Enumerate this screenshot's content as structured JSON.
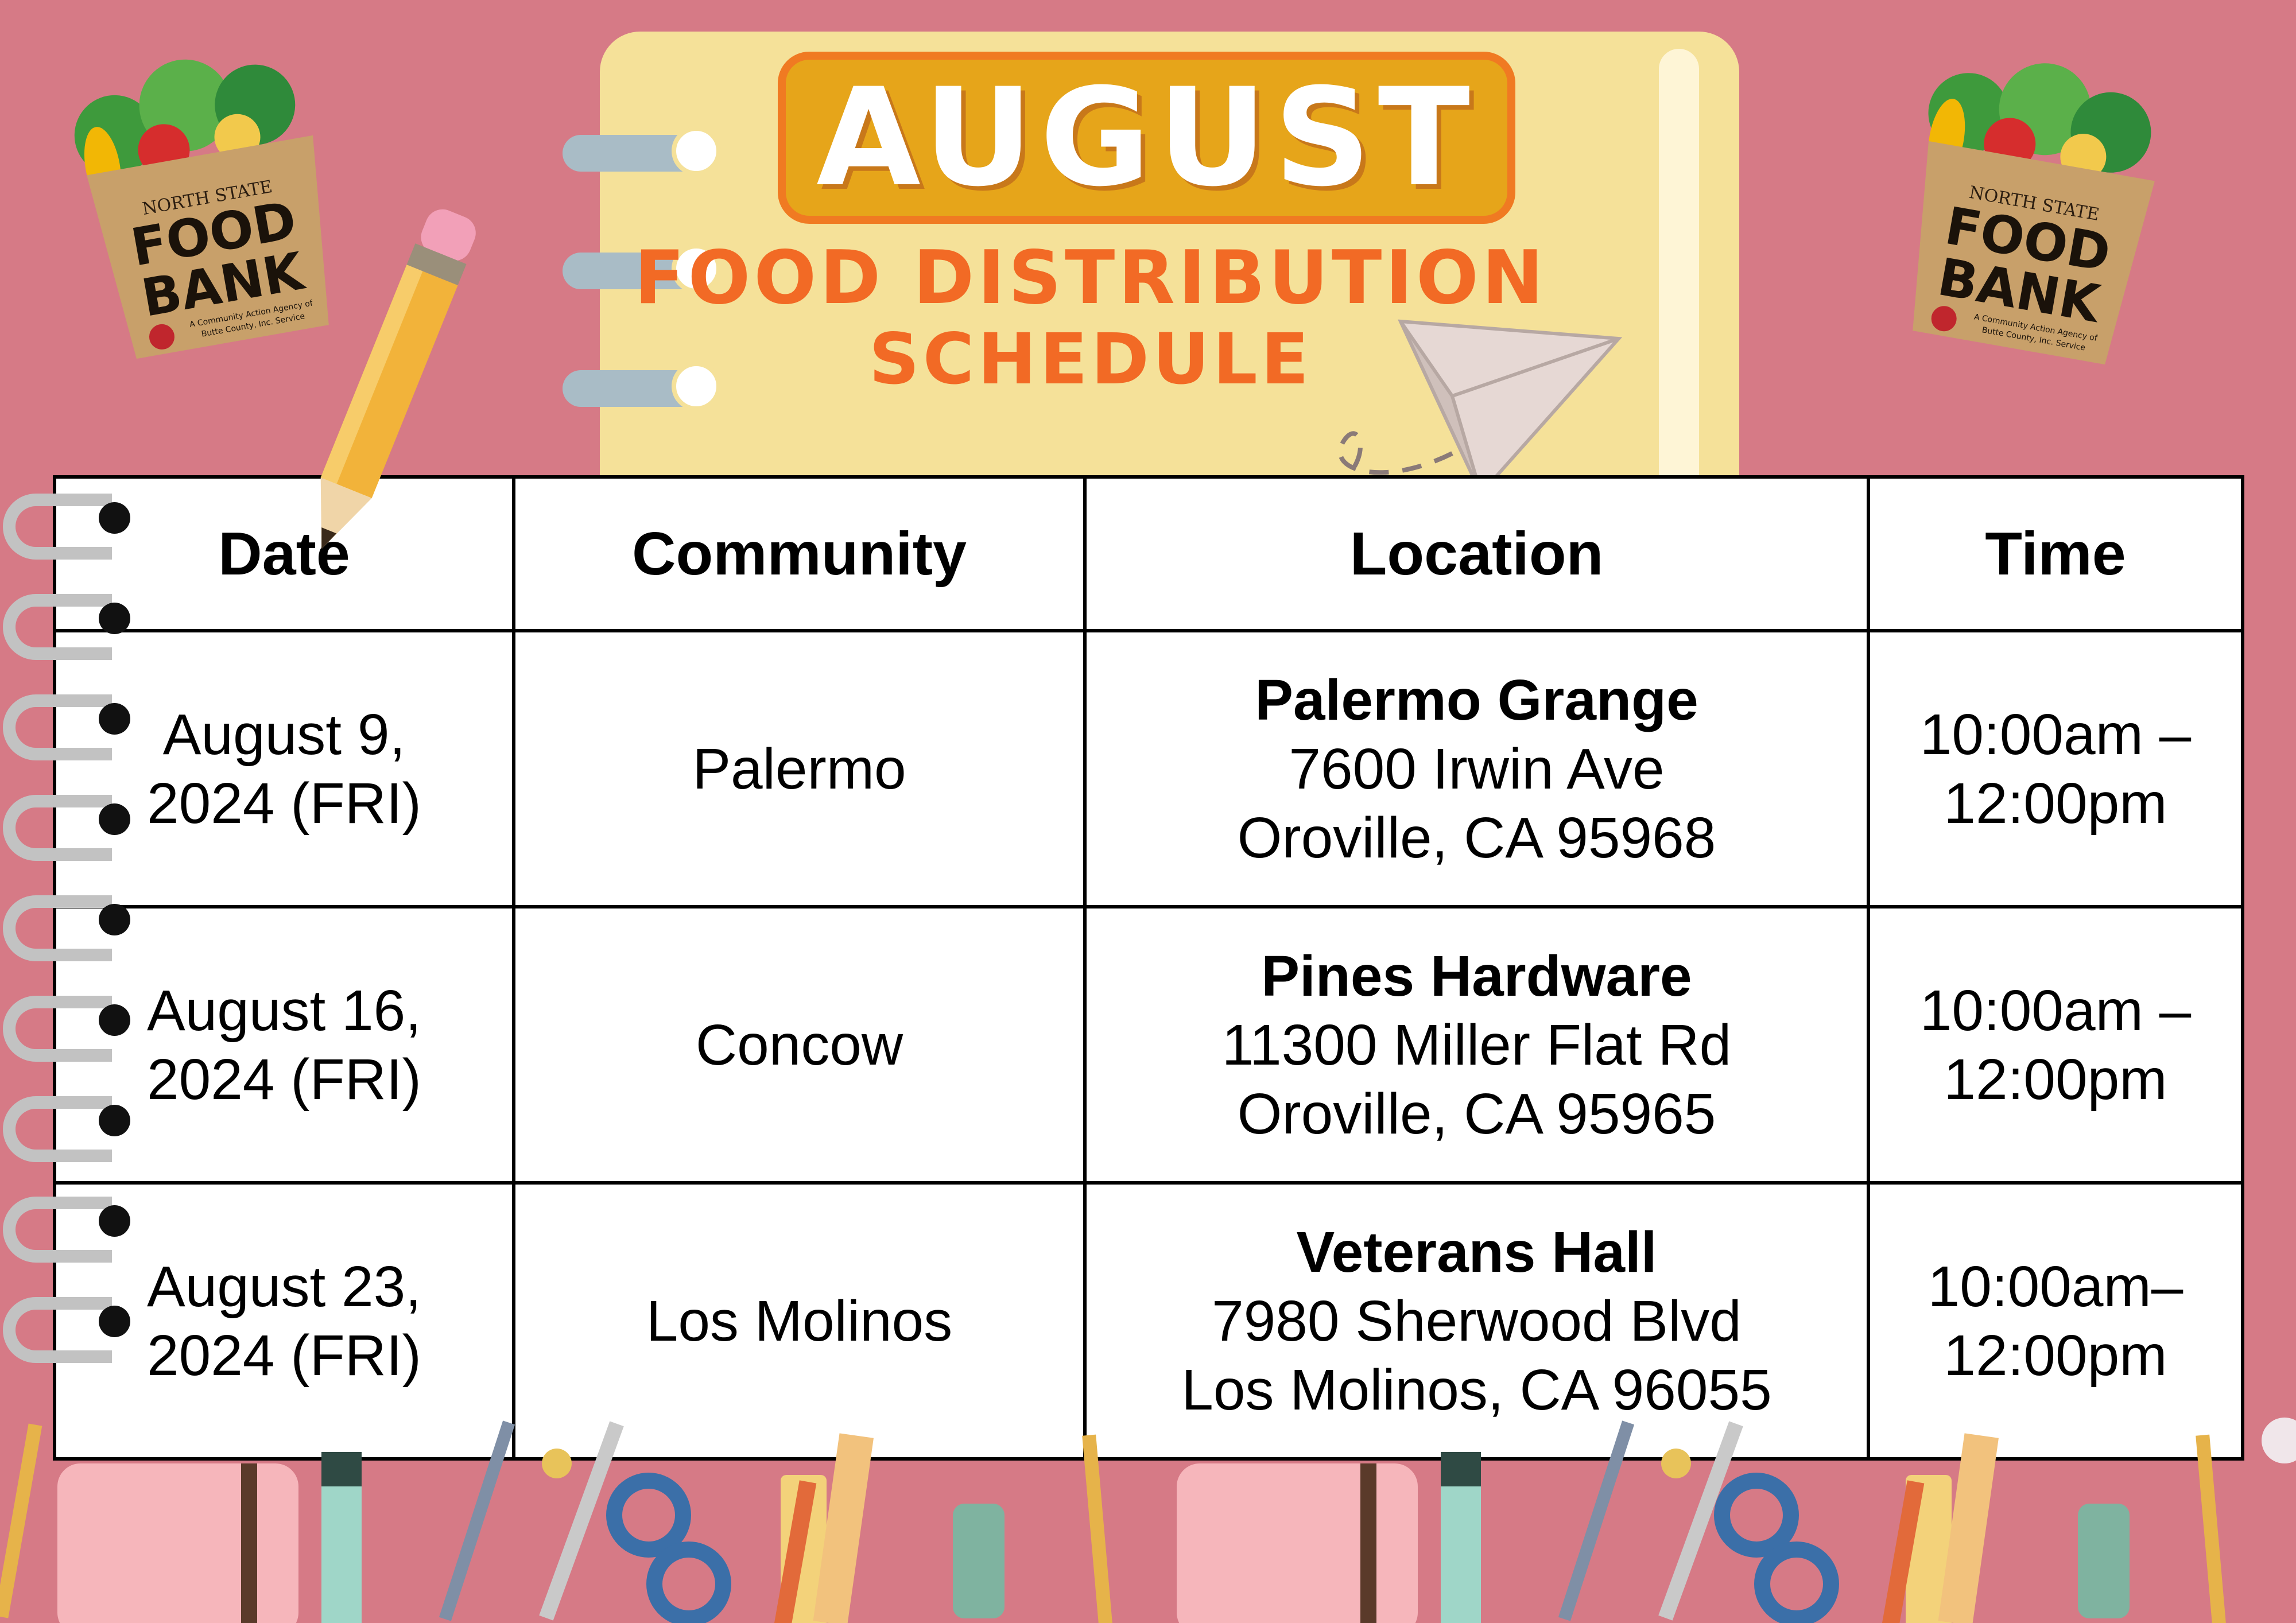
{
  "header": {
    "month": "AUGUST",
    "subtitle_line1": "FOOD DISTRIBUTION",
    "subtitle_line2": "SCHEDULE"
  },
  "logo": {
    "top_text": "NORTH STATE",
    "name_line1": "FOOD",
    "name_line2": "BANK",
    "tagline_line1": "A Community Action Agency of",
    "tagline_line2": "Butte County, Inc. Service"
  },
  "table": {
    "columns": [
      "Date",
      "Community",
      "Location",
      "Time"
    ],
    "rows": [
      {
        "date_line1": "August 9,",
        "date_line2": "2024 (FRI)",
        "community": "Palermo",
        "location_name": "Palermo Grange",
        "address_line1": "7600 Irwin Ave",
        "address_line2": "Oroville, CA 95968",
        "time_line1": "10:00am –",
        "time_line2": "12:00pm"
      },
      {
        "date_line1": "August 16,",
        "date_line2": "2024 (FRI)",
        "community": "Concow",
        "location_name": "Pines Hardware",
        "address_line1": "11300 Miller Flat Rd",
        "address_line2": "Oroville, CA 95965",
        "time_line1": "10:00am –",
        "time_line2": "12:00pm"
      },
      {
        "date_line1": "August 23,",
        "date_line2": "2024 (FRI)",
        "community": "Los Molinos",
        "location_name": "Veterans Hall",
        "address_line1": "7980 Sherwood Blvd",
        "address_line2": "Los Molinos, CA 96055",
        "time_line1": "10:00am–",
        "time_line2": "12:00pm"
      }
    ]
  },
  "colors": {
    "background": "#d67a86",
    "notepad": "#f5e199",
    "title_fill": "#e6a51a",
    "title_border": "#f07a22",
    "subtitle": "#f26a25",
    "bag": "#c8a06a"
  }
}
